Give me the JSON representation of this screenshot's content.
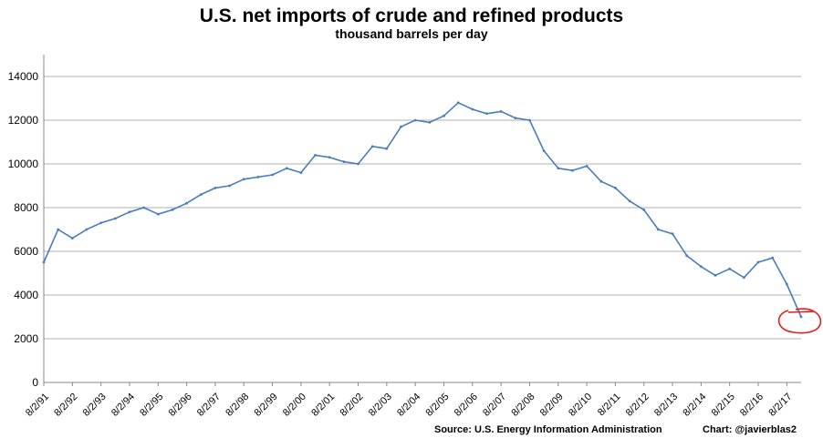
{
  "chart_data": {
    "type": "line",
    "title": "U.S. net imports of crude and refined products",
    "subtitle": "thousand barrels per day",
    "source": "Source: U.S. Energy Information  Administration",
    "credit": "Chart: @javierblas2",
    "xlabel": "",
    "ylabel": "",
    "ylim": [
      0,
      15000
    ],
    "yticks": [
      0,
      2000,
      4000,
      6000,
      8000,
      10000,
      12000,
      14000
    ],
    "xtick_labels": [
      "8/2/91",
      "8/2/92",
      "8/2/93",
      "8/2/94",
      "8/2/95",
      "8/2/96",
      "8/2/97",
      "8/2/98",
      "8/2/99",
      "8/2/00",
      "8/2/01",
      "8/2/02",
      "8/2/03",
      "8/2/04",
      "8/2/05",
      "8/2/06",
      "8/2/07",
      "8/2/08",
      "8/2/09",
      "8/2/10",
      "8/2/11",
      "8/2/12",
      "8/2/13",
      "8/2/14",
      "8/2/15",
      "8/2/16",
      "8/2/17"
    ],
    "grid": true,
    "legend": "none",
    "series": [
      {
        "name": "",
        "color": "#4a7ebb",
        "x": [
          "8/2/91",
          "2/2/92",
          "8/2/92",
          "2/2/93",
          "8/2/93",
          "2/2/94",
          "8/2/94",
          "2/2/95",
          "8/2/95",
          "2/2/96",
          "8/2/96",
          "2/2/97",
          "8/2/97",
          "2/2/98",
          "8/2/98",
          "2/2/99",
          "8/2/99",
          "2/2/00",
          "8/2/00",
          "2/2/01",
          "8/2/01",
          "2/2/02",
          "8/2/02",
          "2/2/03",
          "8/2/03",
          "2/2/04",
          "8/2/04",
          "2/2/05",
          "8/2/05",
          "2/2/06",
          "8/2/06",
          "2/2/07",
          "8/2/07",
          "2/2/08",
          "8/2/08",
          "2/2/09",
          "8/2/09",
          "2/2/10",
          "8/2/10",
          "2/2/11",
          "8/2/11",
          "2/2/12",
          "8/2/12",
          "2/2/13",
          "8/2/13",
          "2/2/14",
          "8/2/14",
          "2/2/15",
          "8/2/15",
          "2/2/16",
          "8/2/16",
          "2/2/17",
          "8/2/17",
          "2/2/18"
        ],
        "values": [
          5500,
          7000,
          6600,
          7000,
          7300,
          7500,
          7800,
          8000,
          7700,
          7900,
          8200,
          8600,
          8900,
          9000,
          9300,
          9400,
          9500,
          9800,
          9600,
          10400,
          10300,
          10100,
          10000,
          10800,
          10700,
          11700,
          12000,
          11900,
          12200,
          12800,
          12500,
          12300,
          12400,
          12100,
          12000,
          10600,
          9800,
          9700,
          9900,
          9200,
          8900,
          8300,
          7900,
          7000,
          6800,
          5800,
          5300,
          4900,
          5200,
          4800,
          5500,
          5700,
          4500,
          3000
        ]
      }
    ],
    "annotation": "red-hand-drawn-circle-at-latest-value"
  }
}
